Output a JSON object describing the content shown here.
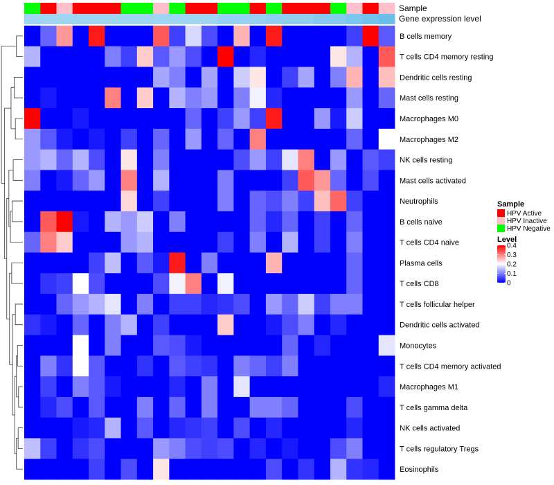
{
  "chart_data": {
    "type": "heatmap",
    "annotation_labels": {
      "sample": "Sample",
      "gene_expression": "Gene expression level"
    },
    "columns": [
      {
        "sample": "HPV Negative",
        "gene_expression": 0.55
      },
      {
        "sample": "HPV Active",
        "gene_expression": 0.55
      },
      {
        "sample": "HPV Inactive",
        "gene_expression": 0.55
      },
      {
        "sample": "HPV Active",
        "gene_expression": 0.55
      },
      {
        "sample": "HPV Active",
        "gene_expression": 0.55
      },
      {
        "sample": "HPV Active",
        "gene_expression": 0.55
      },
      {
        "sample": "HPV Negative",
        "gene_expression": 0.55
      },
      {
        "sample": "HPV Negative",
        "gene_expression": 0.55
      },
      {
        "sample": "HPV Inactive",
        "gene_expression": 0.55
      },
      {
        "sample": "HPV Negative",
        "gene_expression": 0.55
      },
      {
        "sample": "HPV Active",
        "gene_expression": 0.55
      },
      {
        "sample": "HPV Active",
        "gene_expression": 0.55
      },
      {
        "sample": "HPV Negative",
        "gene_expression": 0.6
      },
      {
        "sample": "HPV Negative",
        "gene_expression": 0.6
      },
      {
        "sample": "HPV Active",
        "gene_expression": 0.6
      },
      {
        "sample": "HPV Negative",
        "gene_expression": 0.65
      },
      {
        "sample": "HPV Active",
        "gene_expression": 0.65
      },
      {
        "sample": "HPV Active",
        "gene_expression": 0.65
      },
      {
        "sample": "HPV Active",
        "gene_expression": 0.7
      },
      {
        "sample": "HPV Negative",
        "gene_expression": 0.7
      },
      {
        "sample": "HPV Inactive",
        "gene_expression": 0.75
      },
      {
        "sample": "HPV Active",
        "gene_expression": 0.8
      },
      {
        "sample": "HPV Inactive",
        "gene_expression": 0.85
      }
    ],
    "rows": [
      "B cells memory",
      "T cells CD4 memory resting",
      "Dendritic cells resting",
      "Mast cells resting",
      "Macrophages M0",
      "Macrophages M2",
      "NK cells resting",
      "Mast cells activated",
      "Neutrophils",
      "B cells naive",
      "T cells CD4 naive",
      "Plasma cells",
      "T cells CD8",
      "T cells follicular helper",
      "Dendritic cells activated",
      "Monocytes",
      "T cells CD4 memory activated",
      "Macrophages M1",
      "T cells gamma delta",
      "NK cells activated",
      "T cells regulatory  Tregs",
      "Eosinophils"
    ],
    "values": [
      [
        0.0,
        0.08,
        0.28,
        0.0,
        0.38,
        0.0,
        0.0,
        0.0,
        0.33,
        0.05,
        0.17,
        0.06,
        0.0,
        0.26,
        0.0,
        0.38,
        0.0,
        0.0,
        0.0,
        0.0,
        0.05,
        0.4,
        0.07
      ],
      [
        0.14,
        0.0,
        0.0,
        0.0,
        0.0,
        0.1,
        0.05,
        0.24,
        0.07,
        0.12,
        0.06,
        0.0,
        0.4,
        0.0,
        0.03,
        0.0,
        0.0,
        0.0,
        0.0,
        0.22,
        0.14,
        0.0,
        0.33
      ],
      [
        0.0,
        0.0,
        0.0,
        0.0,
        0.0,
        0.0,
        0.0,
        0.0,
        0.13,
        0.1,
        0.0,
        0.13,
        0.0,
        0.16,
        0.22,
        0.0,
        0.05,
        0.13,
        0.0,
        0.1,
        0.26,
        0.0,
        0.25
      ],
      [
        0.0,
        0.02,
        0.0,
        0.0,
        0.0,
        0.3,
        0.0,
        0.24,
        0.0,
        0.14,
        0.1,
        0.12,
        0.0,
        0.1,
        0.19,
        0.03,
        0.0,
        0.0,
        0.0,
        0.0,
        0.12,
        0.0,
        0.08
      ],
      [
        0.4,
        0.0,
        0.0,
        0.02,
        0.0,
        0.0,
        0.0,
        0.0,
        0.0,
        0.0,
        0.08,
        0.0,
        0.05,
        0.12,
        0.05,
        0.38,
        0.0,
        0.0,
        0.12,
        0.02,
        0.16,
        0.0,
        0.0
      ],
      [
        0.12,
        0.07,
        0.02,
        0.0,
        0.02,
        0.0,
        0.05,
        0.0,
        0.08,
        0.0,
        0.12,
        0.0,
        0.08,
        0.0,
        0.3,
        0.0,
        0.0,
        0.0,
        0.0,
        0.0,
        0.08,
        0.0,
        0.2
      ],
      [
        0.12,
        0.14,
        0.08,
        0.14,
        0.06,
        0.0,
        0.22,
        0.0,
        0.1,
        0.0,
        0.0,
        0.0,
        0.0,
        0.06,
        0.12,
        0.05,
        0.18,
        0.3,
        0.0,
        0.12,
        0.0,
        0.07,
        0.05
      ],
      [
        0.1,
        0.0,
        0.02,
        0.08,
        0.12,
        0.0,
        0.3,
        0.0,
        0.14,
        0.0,
        0.0,
        0.0,
        0.1,
        0.0,
        0.0,
        0.0,
        0.05,
        0.33,
        0.28,
        0.08,
        0.0,
        0.06,
        0.0
      ],
      [
        0.0,
        0.0,
        0.0,
        0.0,
        0.0,
        0.0,
        0.23,
        0.0,
        0.05,
        0.0,
        0.0,
        0.0,
        0.1,
        0.0,
        0.08,
        0.06,
        0.1,
        0.05,
        0.25,
        0.32,
        0.05,
        0.0,
        0.0
      ],
      [
        0.0,
        0.33,
        0.4,
        0.02,
        0.0,
        0.14,
        0.12,
        0.16,
        0.0,
        0.1,
        0.0,
        0.0,
        0.0,
        0.0,
        0.08,
        0.03,
        0.08,
        0.0,
        0.05,
        0.0,
        0.08,
        0.0,
        0.0
      ],
      [
        0.08,
        0.3,
        0.24,
        0.0,
        0.0,
        0.0,
        0.12,
        0.14,
        0.0,
        0.0,
        0.0,
        0.0,
        0.05,
        0.0,
        0.1,
        0.0,
        0.14,
        0.0,
        0.05,
        0.0,
        0.1,
        0.0,
        0.0
      ],
      [
        0.0,
        0.0,
        0.0,
        0.0,
        0.05,
        0.15,
        0.0,
        0.07,
        0.02,
        0.38,
        0.0,
        0.1,
        0.0,
        0.0,
        0.0,
        0.26,
        0.0,
        0.0,
        0.0,
        0.0,
        0.08,
        0.0,
        0.0
      ],
      [
        0.0,
        0.04,
        0.05,
        0.2,
        0.06,
        0.0,
        0.0,
        0.0,
        0.06,
        0.19,
        0.3,
        0.0,
        0.19,
        0.0,
        0.0,
        0.0,
        0.0,
        0.0,
        0.0,
        0.0,
        0.08,
        0.0,
        0.0
      ],
      [
        0.0,
        0.0,
        0.08,
        0.12,
        0.14,
        0.18,
        0.0,
        0.1,
        0.0,
        0.05,
        0.05,
        0.03,
        0.04,
        0.06,
        0.0,
        0.12,
        0.08,
        0.16,
        0.05,
        0.1,
        0.1,
        0.0,
        0.0
      ],
      [
        0.04,
        0.02,
        0.0,
        0.08,
        0.0,
        0.1,
        0.14,
        0.0,
        0.05,
        0.0,
        0.0,
        0.0,
        0.24,
        0.0,
        0.0,
        0.02,
        0.06,
        0.1,
        0.0,
        0.03,
        0.0,
        0.0,
        0.0
      ],
      [
        0.0,
        0.0,
        0.0,
        0.2,
        0.0,
        0.1,
        0.0,
        0.0,
        0.07,
        0.06,
        0.02,
        0.0,
        0.0,
        0.0,
        0.0,
        0.0,
        0.08,
        0.0,
        0.03,
        0.0,
        0.0,
        0.0,
        0.18
      ],
      [
        0.0,
        0.1,
        0.04,
        0.2,
        0.07,
        0.0,
        0.0,
        0.04,
        0.0,
        0.07,
        0.05,
        0.04,
        0.0,
        0.1,
        0.08,
        0.05,
        0.1,
        0.0,
        0.0,
        0.0,
        0.0,
        0.0,
        0.0
      ],
      [
        0.0,
        0.05,
        0.0,
        0.1,
        0.07,
        0.02,
        0.0,
        0.0,
        0.0,
        0.03,
        0.0,
        0.1,
        0.0,
        0.18,
        0.0,
        0.0,
        0.0,
        0.0,
        0.0,
        0.0,
        0.0,
        0.0,
        0.03
      ],
      [
        0.0,
        0.03,
        0.06,
        0.0,
        0.07,
        0.0,
        0.0,
        0.1,
        0.0,
        0.08,
        0.0,
        0.1,
        0.0,
        0.0,
        0.1,
        0.1,
        0.08,
        0.0,
        0.0,
        0.0,
        0.06,
        0.0,
        0.0
      ],
      [
        0.0,
        0.0,
        0.0,
        0.02,
        0.03,
        0.14,
        0.0,
        0.07,
        0.0,
        0.03,
        0.04,
        0.05,
        0.0,
        0.06,
        0.0,
        0.03,
        0.0,
        0.0,
        0.0,
        0.0,
        0.03,
        0.0,
        0.0
      ],
      [
        0.15,
        0.05,
        0.0,
        0.04,
        0.06,
        0.0,
        0.0,
        0.0,
        0.12,
        0.1,
        0.06,
        0.05,
        0.06,
        0.0,
        0.03,
        0.0,
        0.02,
        0.0,
        0.0,
        0.06,
        0.1,
        0.0,
        0.0
      ],
      [
        0.0,
        0.0,
        0.0,
        0.0,
        0.05,
        0.0,
        0.06,
        0.0,
        0.22,
        0.0,
        0.0,
        0.0,
        0.0,
        0.0,
        0.0,
        0.06,
        0.0,
        0.04,
        0.0,
        0.14,
        0.04,
        0.03,
        0.0
      ]
    ],
    "legend": {
      "sample": {
        "title": "Sample",
        "entries": [
          {
            "label": "HPV Active",
            "color": "#ff0000"
          },
          {
            "label": "HPV Inactive",
            "color": "#ffc0cb"
          },
          {
            "label": "HPV Negative",
            "color": "#00ff00"
          }
        ]
      },
      "level": {
        "title": "Level",
        "min": 0,
        "max": 0.4,
        "ticks": [
          {
            "value": 0,
            "label": "0"
          },
          {
            "value": 0.1,
            "label": "0.1"
          },
          {
            "value": 0.2,
            "label": "0.2"
          },
          {
            "value": 0.3,
            "label": "0.3"
          },
          {
            "value": 0.4,
            "label": "0.4"
          }
        ],
        "colors": {
          "low": "#0000ff",
          "mid": "#ffffff",
          "high": "#ff0000"
        },
        "midpoint": 0.2
      }
    },
    "gene_expression_color_scale": {
      "low": "#ffffff",
      "high": "#4fb3ea"
    },
    "row_dendrogram": true
  }
}
